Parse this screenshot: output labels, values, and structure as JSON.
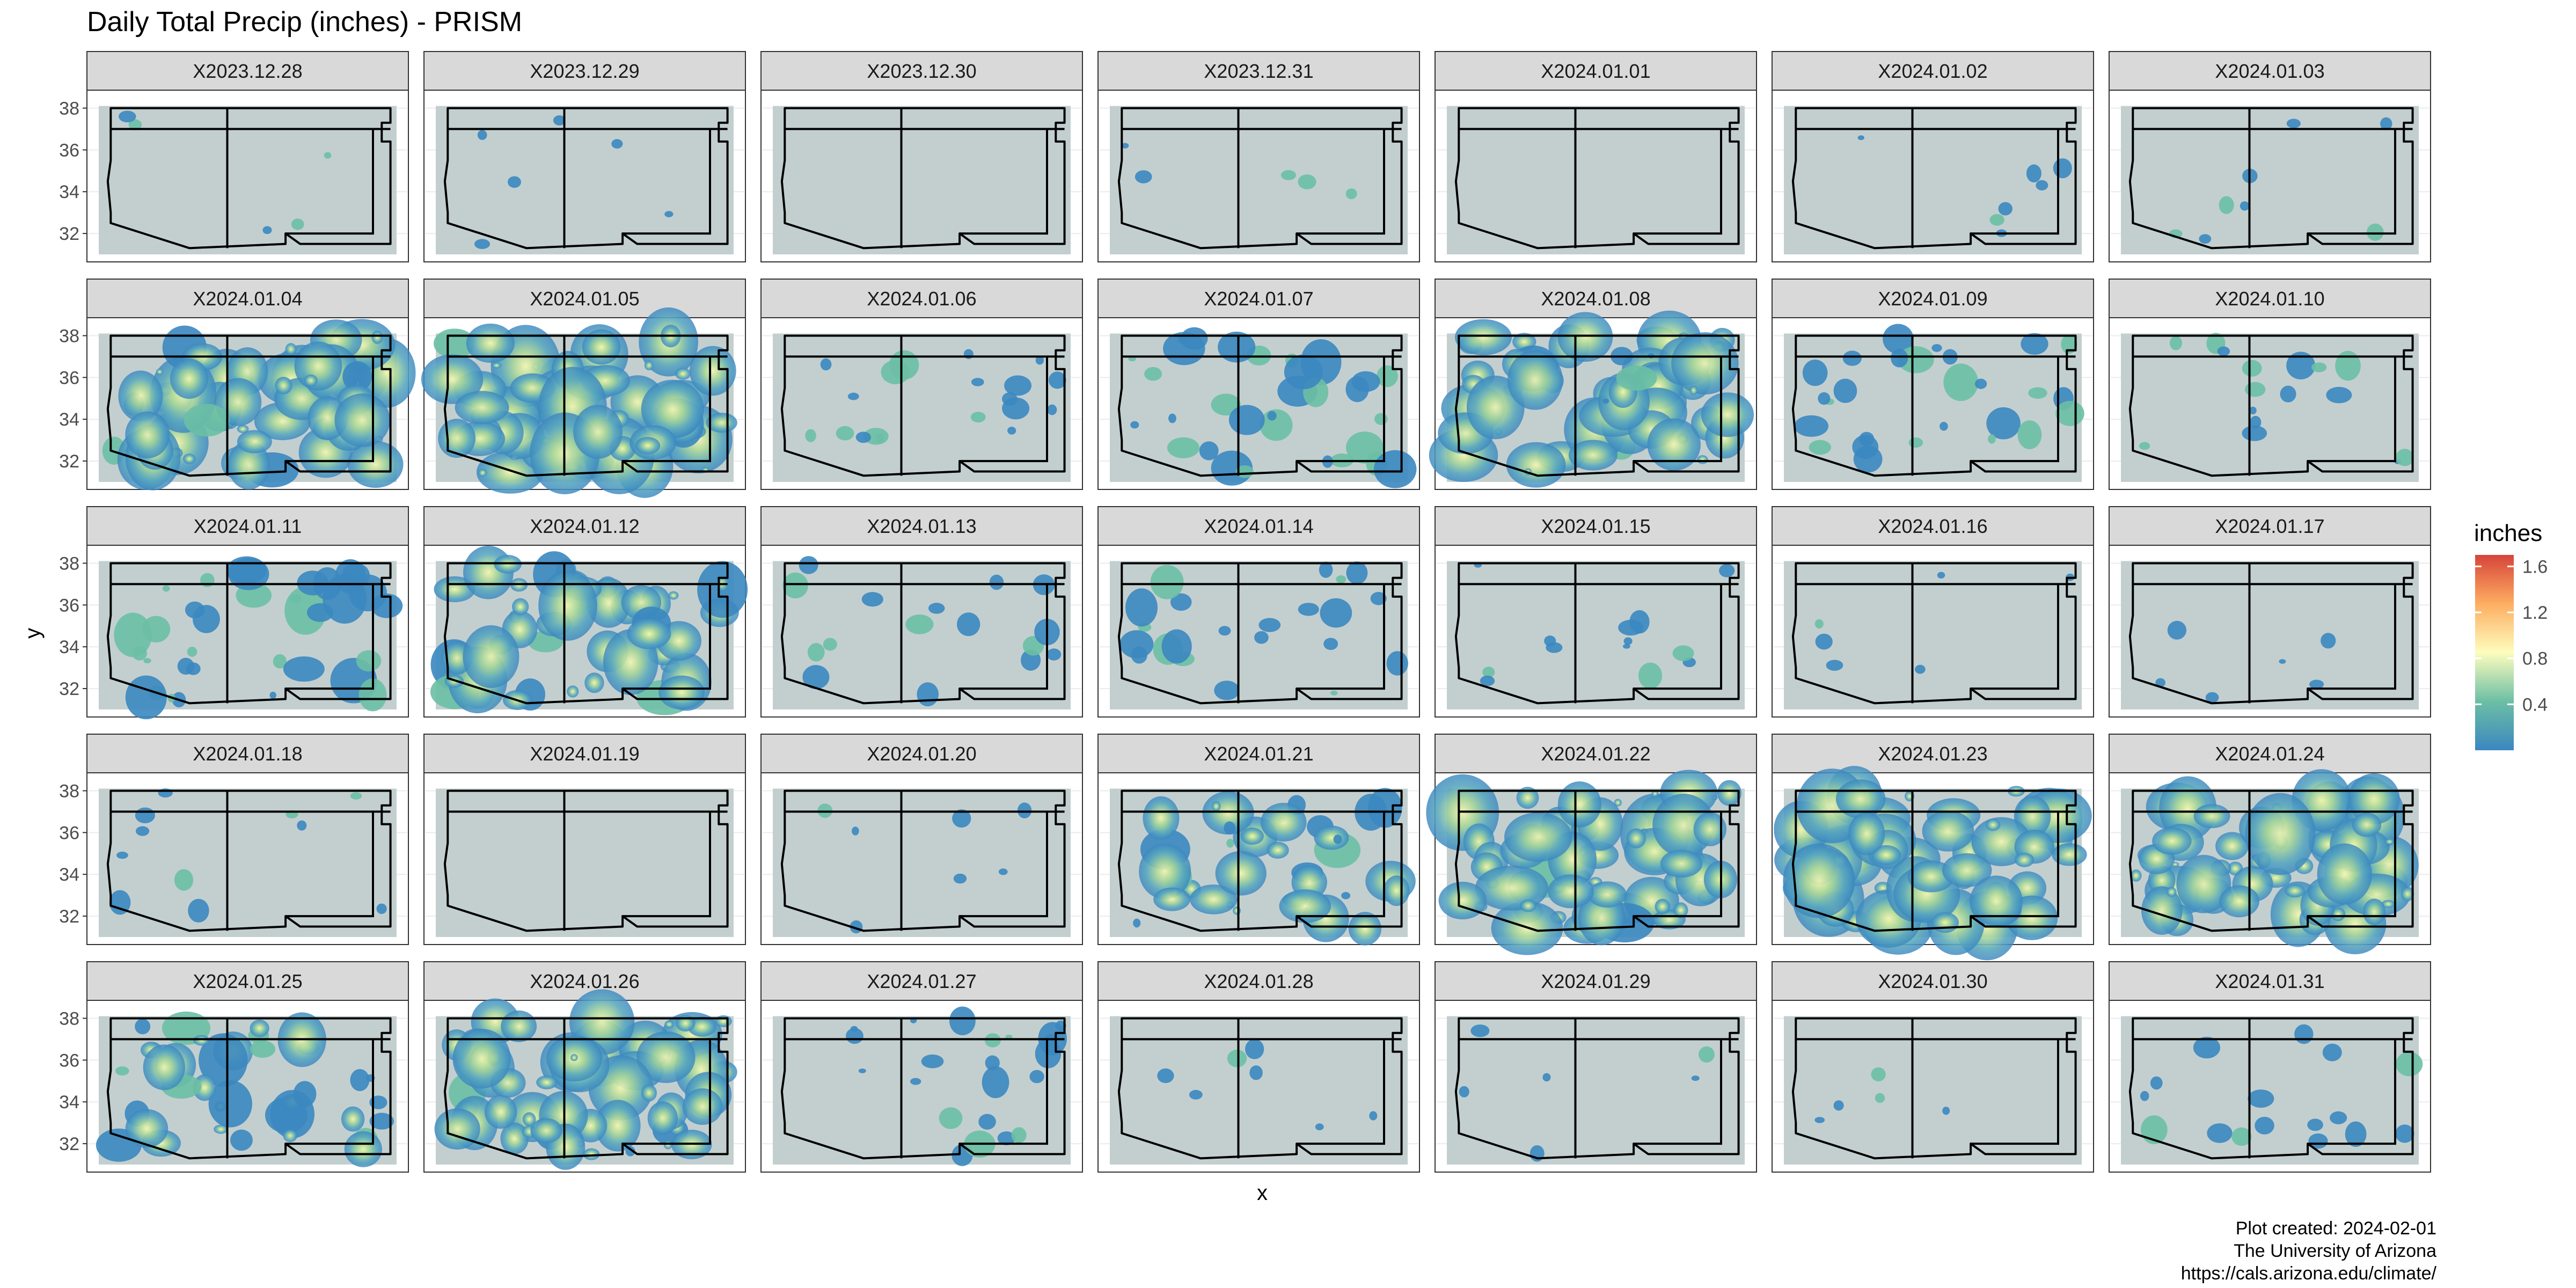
{
  "chart_data": {
    "type": "heatmap",
    "title": "Daily Total Precip (inches) - PRISM",
    "xlabel": "x",
    "ylabel": "y",
    "ylim": [
      31,
      38.5
    ],
    "y_ticks": [
      "32",
      "34",
      "36",
      "38"
    ],
    "grid": true,
    "legend": {
      "title": "inches",
      "position": "right",
      "range": [
        0,
        1.7
      ],
      "ticks": [
        {
          "label": "0.4",
          "value": 0.4
        },
        {
          "label": "0.8",
          "value": 0.8
        },
        {
          "label": "1.2",
          "value": 1.2
        },
        {
          "label": "1.6",
          "value": 1.6
        }
      ]
    },
    "colors": {
      "panel_fill": "#c3cfcf",
      "strip_fill": "#d9d9d9",
      "low": "#3b87c0",
      "mid": "#6cbfa4",
      "high_mid": "#fdfdbe",
      "orange": "#fdae61",
      "max": "#d7443a",
      "border": "#000000"
    },
    "panels": [
      {
        "label": "X2023.12.28",
        "intensity": 0.01
      },
      {
        "label": "X2023.12.29",
        "intensity": 0.03
      },
      {
        "label": "X2023.12.30",
        "intensity": 0.0
      },
      {
        "label": "X2023.12.31",
        "intensity": 0.02
      },
      {
        "label": "X2024.01.01",
        "intensity": 0.0
      },
      {
        "label": "X2024.01.02",
        "intensity": 0.05
      },
      {
        "label": "X2024.01.03",
        "intensity": 0.06
      },
      {
        "label": "X2024.01.04",
        "intensity": 0.85
      },
      {
        "label": "X2024.01.05",
        "intensity": 0.9
      },
      {
        "label": "X2024.01.06",
        "intensity": 0.25
      },
      {
        "label": "X2024.01.07",
        "intensity": 0.45
      },
      {
        "label": "X2024.01.08",
        "intensity": 0.9
      },
      {
        "label": "X2024.01.09",
        "intensity": 0.4
      },
      {
        "label": "X2024.01.10",
        "intensity": 0.2
      },
      {
        "label": "X2024.01.11",
        "intensity": 0.5
      },
      {
        "label": "X2024.01.12",
        "intensity": 0.75
      },
      {
        "label": "X2024.01.13",
        "intensity": 0.2
      },
      {
        "label": "X2024.01.14",
        "intensity": 0.3
      },
      {
        "label": "X2024.01.15",
        "intensity": 0.15
      },
      {
        "label": "X2024.01.16",
        "intensity": 0.03
      },
      {
        "label": "X2024.01.17",
        "intensity": 0.03
      },
      {
        "label": "X2024.01.18",
        "intensity": 0.12
      },
      {
        "label": "X2024.01.19",
        "intensity": 0.0
      },
      {
        "label": "X2024.01.20",
        "intensity": 0.05
      },
      {
        "label": "X2024.01.21",
        "intensity": 0.6
      },
      {
        "label": "X2024.01.22",
        "intensity": 0.95
      },
      {
        "label": "X2024.01.23",
        "intensity": 0.95
      },
      {
        "label": "X2024.01.24",
        "intensity": 0.95
      },
      {
        "label": "X2024.01.25",
        "intensity": 0.55
      },
      {
        "label": "X2024.01.26",
        "intensity": 0.85
      },
      {
        "label": "X2024.01.27",
        "intensity": 0.3
      },
      {
        "label": "X2024.01.28",
        "intensity": 0.05
      },
      {
        "label": "X2024.01.29",
        "intensity": 0.04
      },
      {
        "label": "X2024.01.30",
        "intensity": 0.01
      },
      {
        "label": "X2024.01.31",
        "intensity": 0.2
      }
    ]
  },
  "caption": {
    "line1": "Plot created: 2024-02-01",
    "line2": "The University of Arizona",
    "line3": "https://cals.arizona.edu/climate/"
  }
}
